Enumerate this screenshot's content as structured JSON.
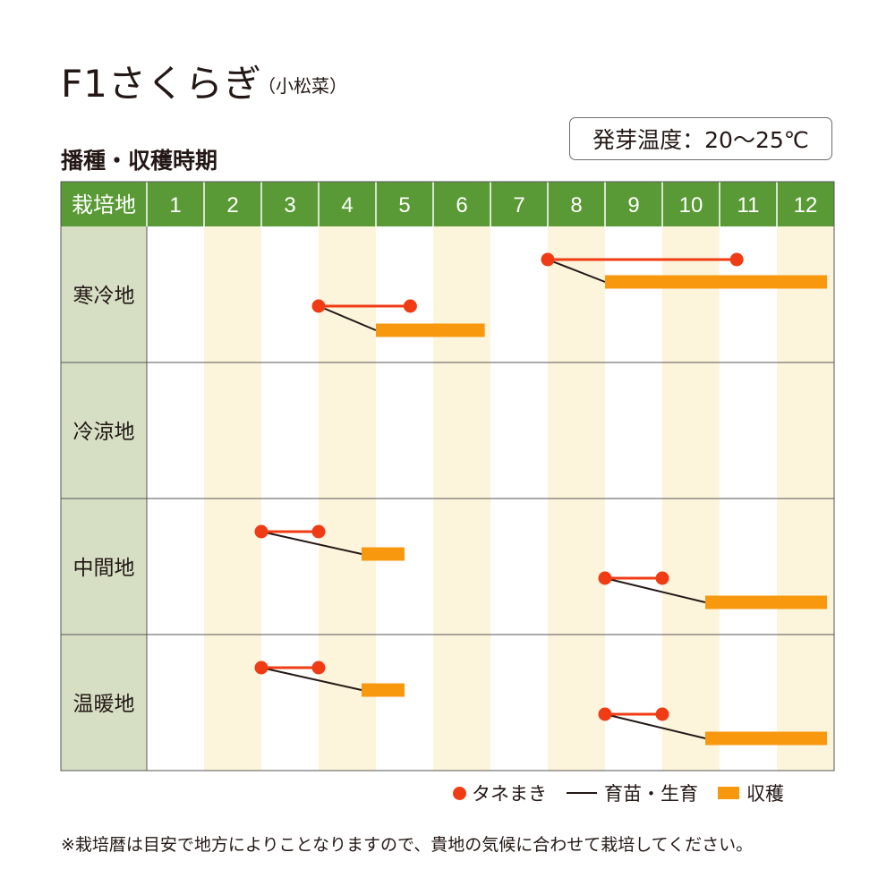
{
  "title": "F1さくらぎ",
  "subtitle": "（小松菜）",
  "germination_temp": "発芽温度：20〜25℃",
  "section_title": "播種・収穫時期",
  "colors": {
    "header_green": "#5a9a36",
    "label_bg": "#d6dfc4",
    "stripe_bg": "#fdf4dc",
    "sowing": "#f03c14",
    "harvest": "#f7980f",
    "growing": "#231815"
  },
  "chart_data": {
    "type": "gantt",
    "corner_label": "栽培地",
    "months": [
      "1",
      "2",
      "3",
      "4",
      "5",
      "6",
      "7",
      "8",
      "9",
      "10",
      "11",
      "12"
    ],
    "regions": [
      {
        "name": "寒冷地",
        "schedules": [
          {
            "sowing": [
              8.0,
              11.3
            ],
            "harvest": [
              9.0,
              12.9
            ]
          },
          {
            "sowing": [
              4.0,
              5.6
            ],
            "harvest": [
              5.0,
              6.9
            ]
          }
        ]
      },
      {
        "name": "冷涼地",
        "schedules": []
      },
      {
        "name": "中間地",
        "schedules": [
          {
            "sowing": [
              3.0,
              4.0
            ],
            "harvest": [
              4.75,
              5.5
            ]
          },
          {
            "sowing": [
              9.0,
              10.0
            ],
            "harvest": [
              10.75,
              12.9
            ]
          }
        ]
      },
      {
        "name": "温暖地",
        "schedules": [
          {
            "sowing": [
              3.0,
              4.0
            ],
            "harvest": [
              4.75,
              5.5
            ]
          },
          {
            "sowing": [
              9.0,
              10.0
            ],
            "harvest": [
              10.75,
              12.9
            ]
          }
        ]
      }
    ],
    "legend": [
      {
        "key": "sowing",
        "label": "タネまき"
      },
      {
        "key": "growing",
        "label": "育苗・生育"
      },
      {
        "key": "harvest",
        "label": "収穫"
      }
    ]
  },
  "footnote": "※栽培暦は目安で地方によりことなりますので、貴地の気候に合わせて栽培してください。"
}
